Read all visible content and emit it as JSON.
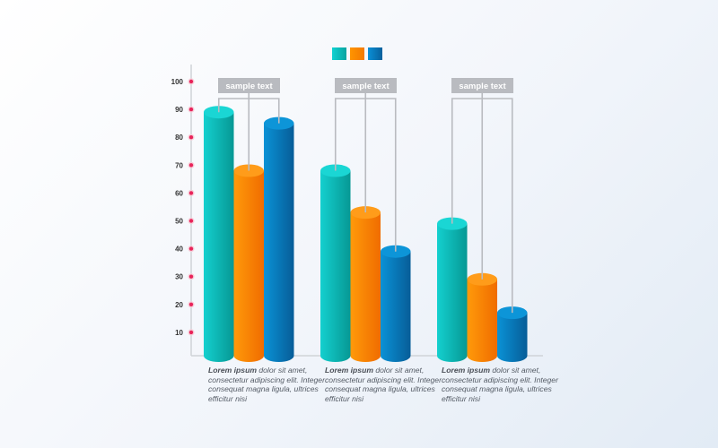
{
  "chart_data": {
    "type": "bar",
    "title": "",
    "xlabel": "",
    "ylabel": "",
    "ylim": [
      0,
      100
    ],
    "yticks": [
      10,
      20,
      30,
      40,
      50,
      60,
      70,
      80,
      90,
      100
    ],
    "grid": false,
    "legend_position": "top-center",
    "categories": [
      "sample text",
      "sample text",
      "sample text"
    ],
    "series": [
      {
        "color": "#0fc4c4",
        "values": [
          89,
          68,
          49
        ]
      },
      {
        "color": "#ff8a00",
        "values": [
          68,
          53,
          29
        ]
      },
      {
        "color": "#0b7ec4",
        "values": [
          85,
          39,
          17
        ]
      }
    ],
    "descriptions": [
      {
        "bold": "Lorem ipsum",
        "text": " dolor sit amet, consectetur adipiscing elit. Integer consequat magna ligula, ultrices efficitur nisi"
      },
      {
        "bold": "Lorem ipsum",
        "text": " dolor sit amet, consectetur adipiscing elit. Integer consequat magna ligula, ultrices efficitur nisi"
      },
      {
        "bold": "Lorem ipsum",
        "text": " dolor sit amet, consectetur adipiscing elit. Integer consequat magna ligula, ultrices efficitur nisi"
      }
    ],
    "tick_dot_color": "#e8245a",
    "label_box_color": "#b9bbc0"
  }
}
